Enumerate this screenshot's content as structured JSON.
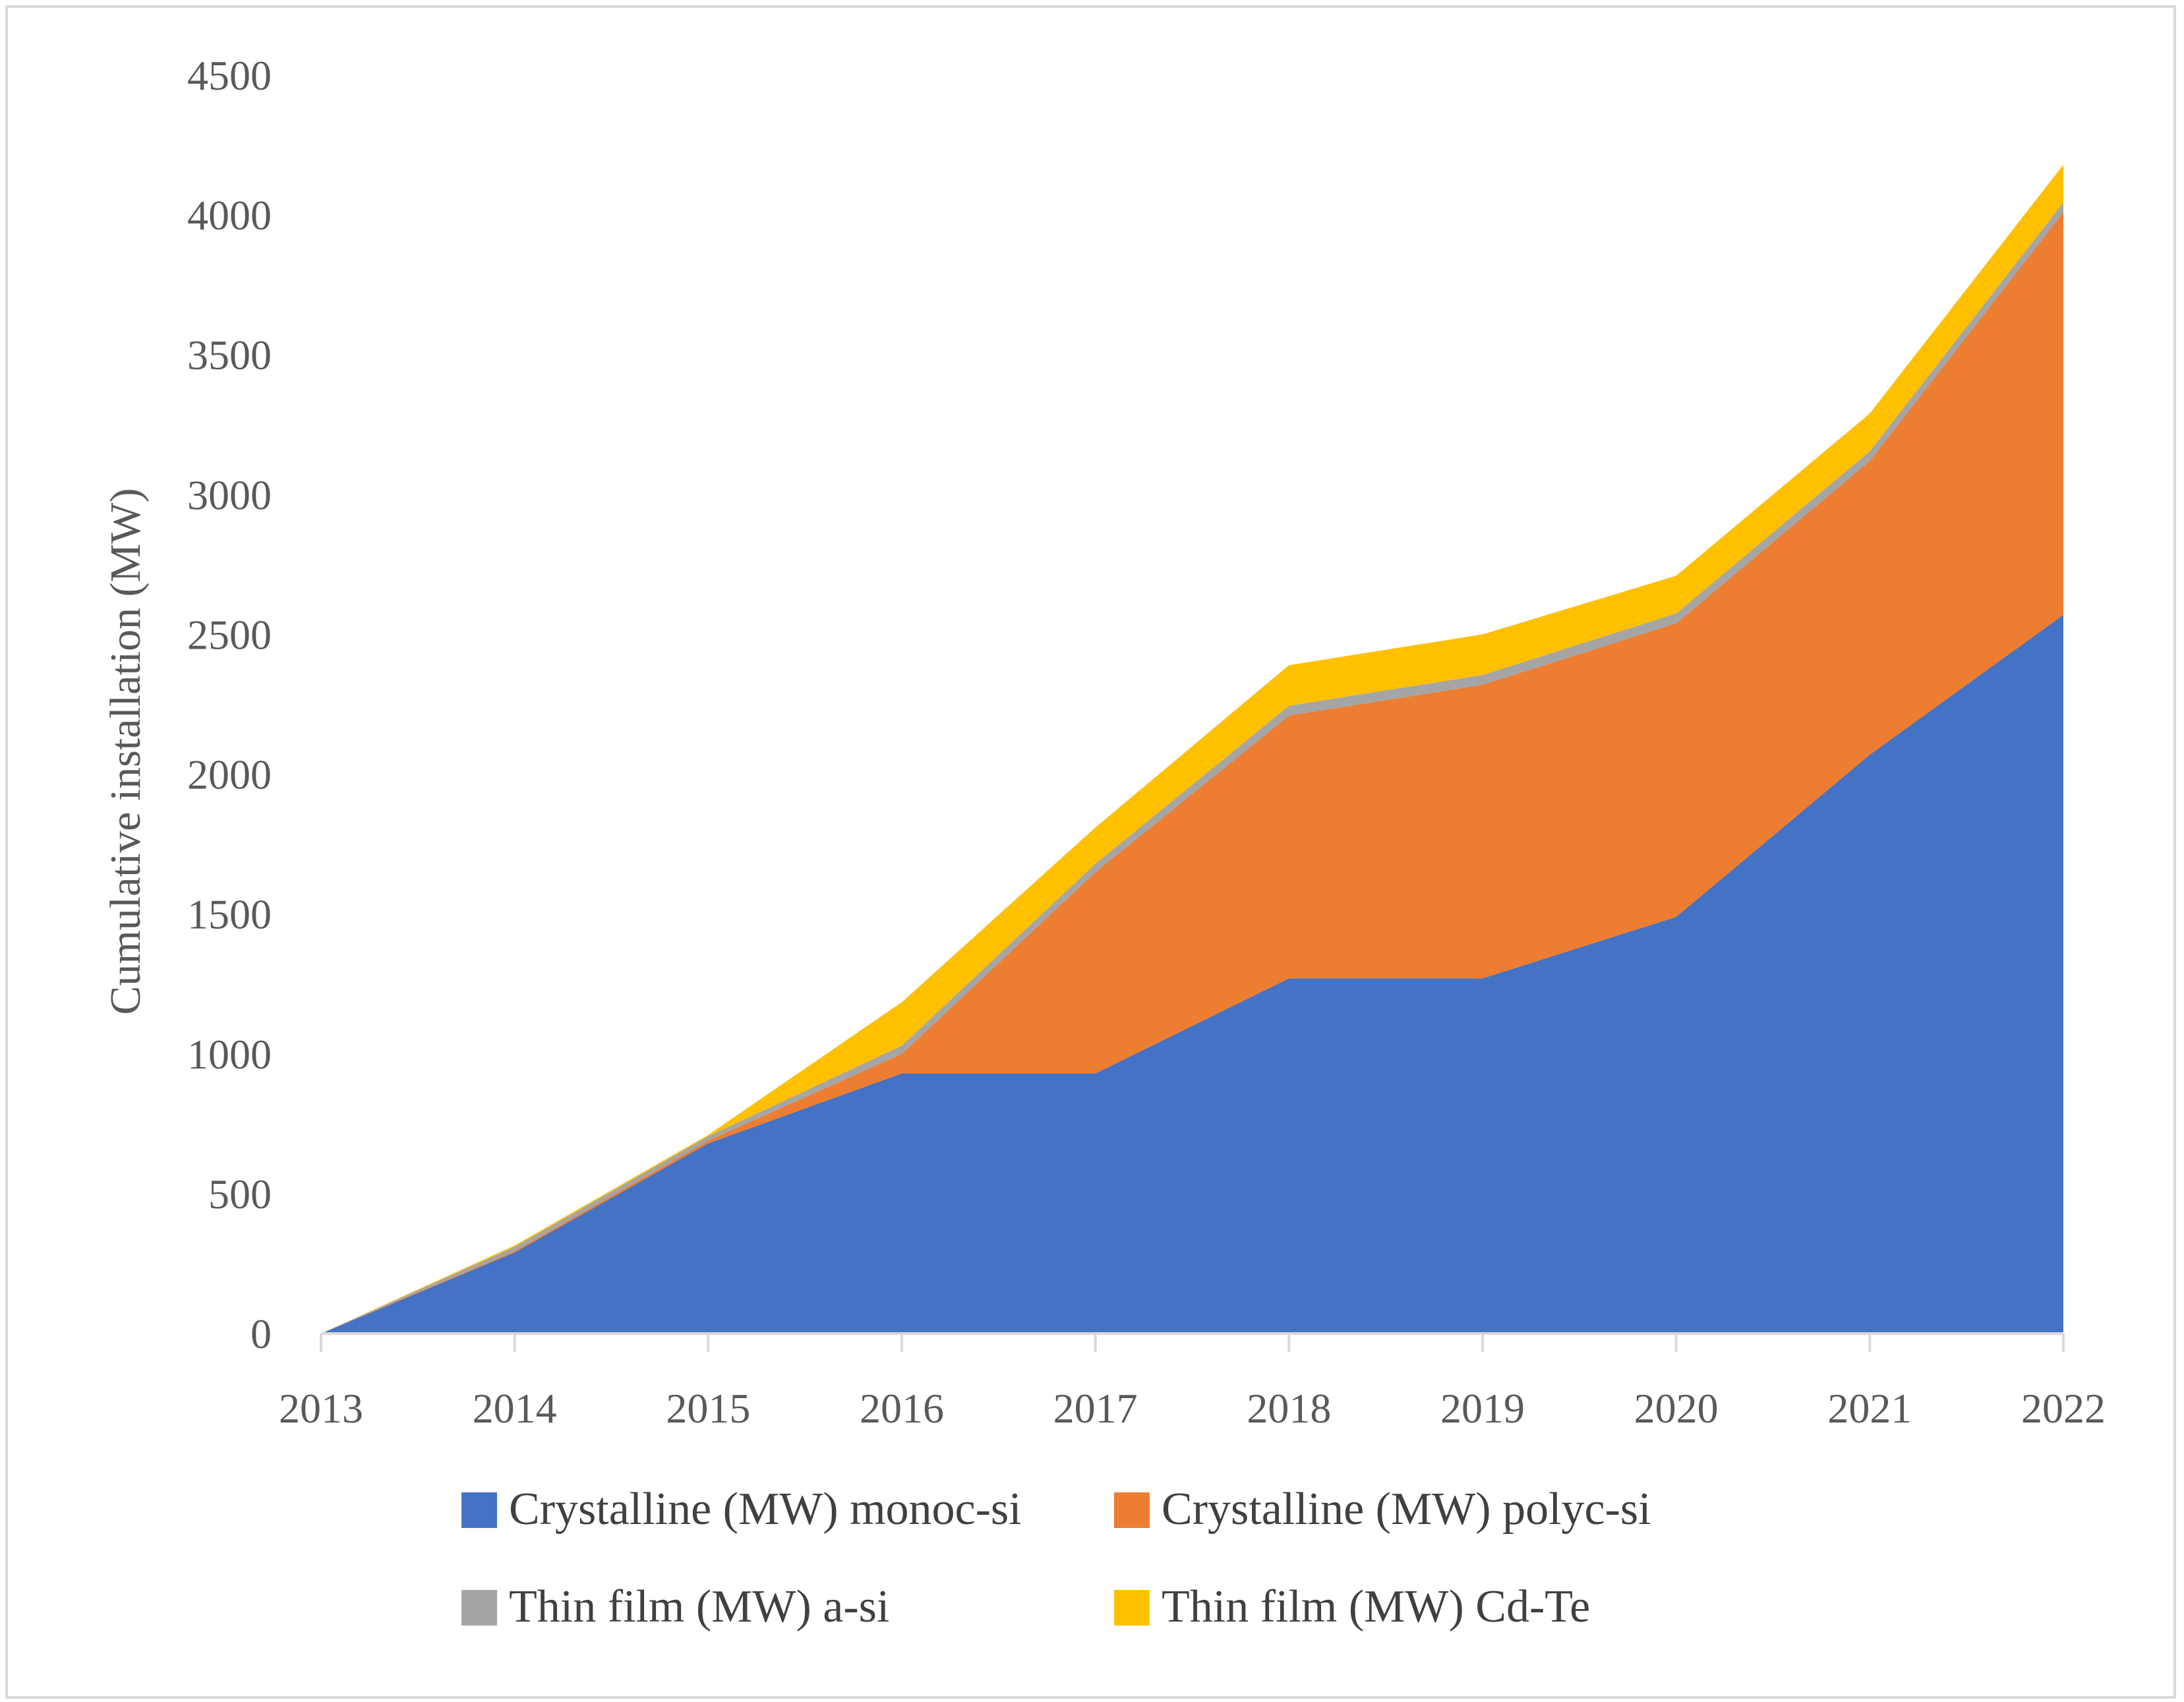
{
  "chart_data": {
    "type": "area",
    "stacked": true,
    "title": "",
    "xlabel": "",
    "ylabel": "Cumulative installation (MW)",
    "ylim": [
      0,
      4500
    ],
    "yticks": [
      0,
      500,
      1000,
      1500,
      2000,
      2500,
      3000,
      3500,
      4000,
      4500
    ],
    "grid": false,
    "legend_position": "bottom",
    "categories": [
      "2013",
      "2014",
      "2015",
      "2016",
      "2017",
      "2018",
      "2019",
      "2020",
      "2021",
      "2022"
    ],
    "series": [
      {
        "name": "Crystalline (MW) monoc-si",
        "color": "#4472c4",
        "values": [
          0,
          290,
          680,
          930,
          930,
          1270,
          1270,
          1490,
          2070,
          2570
        ]
      },
      {
        "name": "Crystalline (MW) polyc-si",
        "color": "#ed7d31",
        "values": [
          0,
          5,
          10,
          70,
          720,
          940,
          1050,
          1050,
          1050,
          1440
        ]
      },
      {
        "name": "Thin film (MW) a-si",
        "color": "#a5a5a5",
        "values": [
          0,
          15,
          15,
          30,
          30,
          35,
          35,
          35,
          35,
          35
        ]
      },
      {
        "name": "Thin film (MW) Cd-Te",
        "color": "#ffc000",
        "values": [
          0,
          5,
          5,
          155,
          130,
          145,
          145,
          135,
          135,
          135
        ]
      }
    ]
  }
}
